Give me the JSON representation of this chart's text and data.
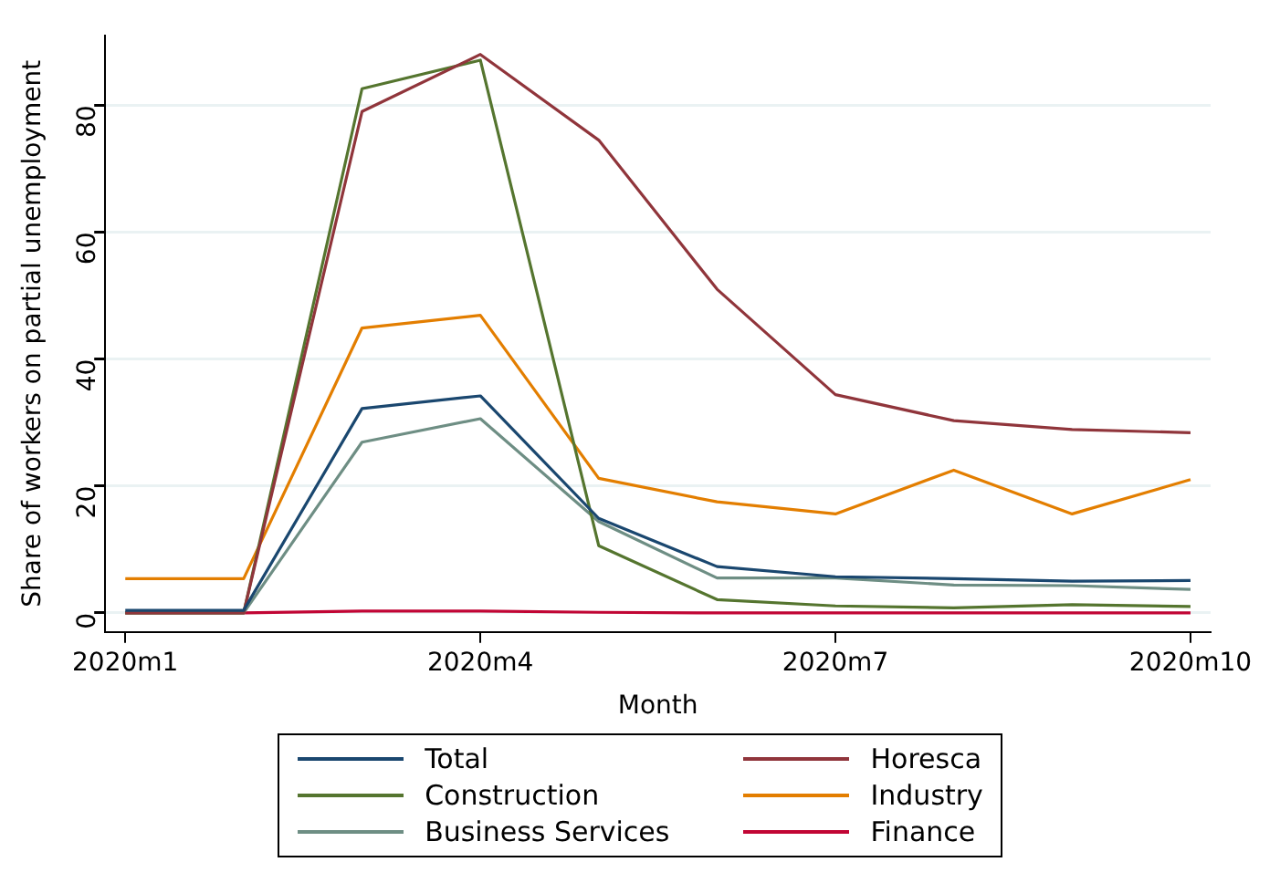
{
  "chart_data": {
    "type": "line",
    "xlabel": "Month",
    "ylabel": "Share of workers on partial unemployment",
    "categories": [
      "2020m1",
      null,
      null,
      "2020m4",
      null,
      null,
      "2020m7",
      null,
      null,
      "2020m10"
    ],
    "series": [
      {
        "name": "Total",
        "color": "#1a476f",
        "values": [
          0.4,
          0.4,
          32.2,
          34.2,
          14.9,
          7.3,
          5.7,
          5.4,
          5.0,
          5.1
        ]
      },
      {
        "name": "Horesca",
        "color": "#90353b",
        "values": [
          0,
          0,
          79,
          88,
          74.5,
          51,
          34.4,
          30.3,
          28.9,
          28.4
        ]
      },
      {
        "name": "Construction",
        "color": "#55752f",
        "values": [
          0,
          0,
          82.6,
          87.1,
          10.6,
          2.1,
          1.1,
          0.8,
          1.3,
          1.0
        ]
      },
      {
        "name": "Industry",
        "color": "#e37e00",
        "values": [
          5.4,
          5.4,
          44.9,
          46.9,
          21.2,
          17.5,
          15.6,
          22.5,
          15.6,
          21
        ]
      },
      {
        "name": "Business Services",
        "color": "#6e8e84",
        "values": [
          0,
          0,
          26.9,
          30.6,
          14.4,
          5.5,
          5.5,
          4.4,
          4.3,
          3.7
        ]
      },
      {
        "name": "Finance",
        "color": "#c10534",
        "values": [
          0,
          0,
          0.3,
          0.3,
          0.1,
          0,
          0,
          0,
          0,
          0
        ]
      }
    ],
    "ylim": [
      -3,
      91
    ],
    "yticks": [
      0,
      20,
      40,
      60,
      80
    ],
    "grid": "y",
    "legend": "bottom",
    "marker": "none",
    "line_style": "solid"
  }
}
